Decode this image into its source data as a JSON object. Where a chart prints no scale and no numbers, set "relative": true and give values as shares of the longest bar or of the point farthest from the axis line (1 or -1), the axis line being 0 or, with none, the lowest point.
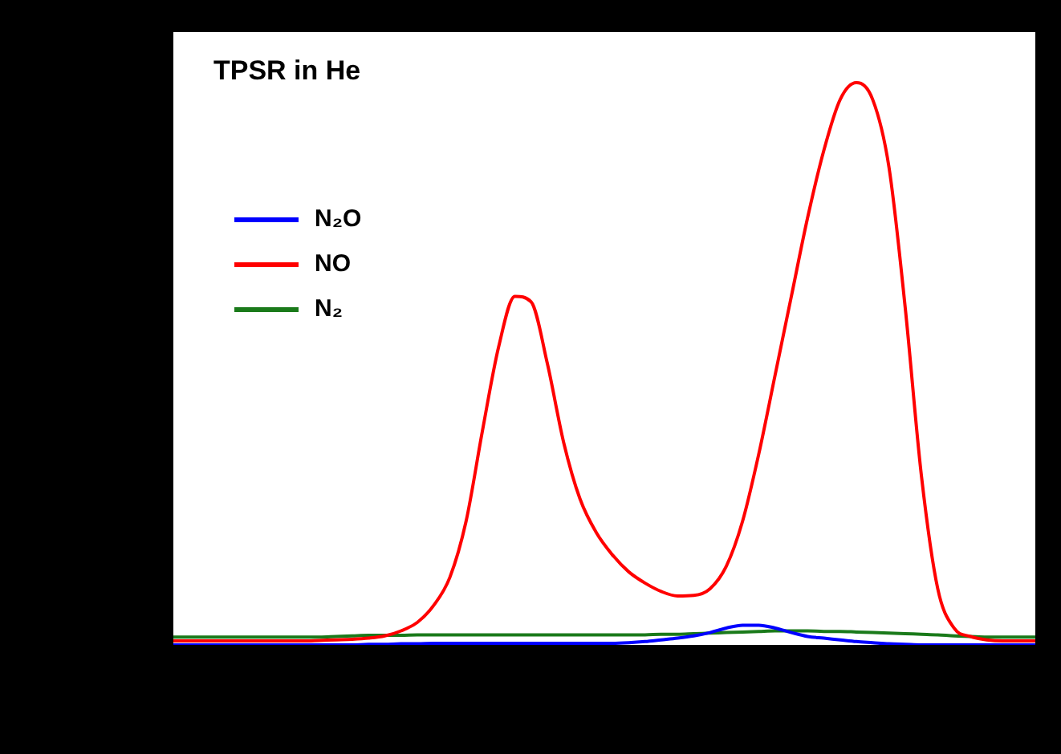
{
  "chart_data": {
    "type": "line",
    "title": "TPSR in He",
    "relative": true,
    "legend": "top left",
    "marker": "none",
    "line_style": "solid",
    "grid": false,
    "categories": [
      null,
      null,
      null,
      null,
      null,
      null,
      null,
      null,
      null,
      null,
      null,
      null,
      null,
      null,
      null,
      null,
      null,
      null,
      null,
      null,
      null,
      null,
      null,
      null,
      null,
      null,
      null,
      null,
      null,
      null,
      null,
      null,
      null,
      null,
      null,
      null,
      null,
      null,
      null,
      null,
      null,
      null,
      null,
      null,
      null,
      null,
      null,
      null,
      null,
      null,
      null,
      null,
      null,
      null
    ],
    "series": [
      {
        "name": "N₂O",
        "color": "#0000ff",
        "values": [
          0.0,
          0.0,
          0.0,
          0.0,
          0.0,
          0.0,
          0.0,
          0.0,
          0.0,
          0.0,
          0.0,
          0.0,
          0.001,
          0.001,
          0.002,
          0.002,
          0.003,
          0.003,
          0.003,
          0.003,
          0.003,
          0.003,
          0.003,
          0.003,
          0.003,
          0.003,
          0.003,
          0.003,
          0.004,
          0.006,
          0.009,
          0.012,
          0.016,
          0.022,
          0.03,
          0.035,
          0.035,
          0.03,
          0.022,
          0.015,
          0.012,
          0.009,
          0.006,
          0.004,
          0.002,
          0.001,
          0.0,
          0.0,
          0.0,
          0.0,
          0.0,
          0.0,
          0.0,
          0.0
        ]
      },
      {
        "name": "NO",
        "color": "#ff0000",
        "values": [
          0.007,
          0.007,
          0.007,
          0.007,
          0.007,
          0.007,
          0.007,
          0.007,
          0.007,
          0.008,
          0.009,
          0.01,
          0.012,
          0.016,
          0.025,
          0.04,
          0.07,
          0.12,
          0.22,
          0.38,
          0.53,
          0.62,
          0.61,
          0.5,
          0.36,
          0.26,
          0.2,
          0.16,
          0.13,
          0.11,
          0.095,
          0.087,
          0.088,
          0.1,
          0.14,
          0.22,
          0.34,
          0.48,
          0.62,
          0.76,
          0.88,
          0.97,
          1.0,
          0.97,
          0.85,
          0.6,
          0.3,
          0.1,
          0.03,
          0.015,
          0.009,
          0.007,
          0.007,
          0.007
        ]
      },
      {
        "name": "N₂",
        "color": "#1a7a1a",
        "values": [
          0.014,
          0.014,
          0.014,
          0.014,
          0.014,
          0.014,
          0.014,
          0.014,
          0.014,
          0.014,
          0.015,
          0.016,
          0.017,
          0.017,
          0.017,
          0.018,
          0.018,
          0.018,
          0.018,
          0.018,
          0.018,
          0.018,
          0.018,
          0.018,
          0.018,
          0.018,
          0.018,
          0.018,
          0.018,
          0.018,
          0.019,
          0.019,
          0.02,
          0.021,
          0.022,
          0.023,
          0.024,
          0.025,
          0.025,
          0.025,
          0.024,
          0.024,
          0.023,
          0.022,
          0.021,
          0.02,
          0.019,
          0.018,
          0.016,
          0.015,
          0.014,
          0.014,
          0.014,
          0.014
        ]
      }
    ]
  }
}
